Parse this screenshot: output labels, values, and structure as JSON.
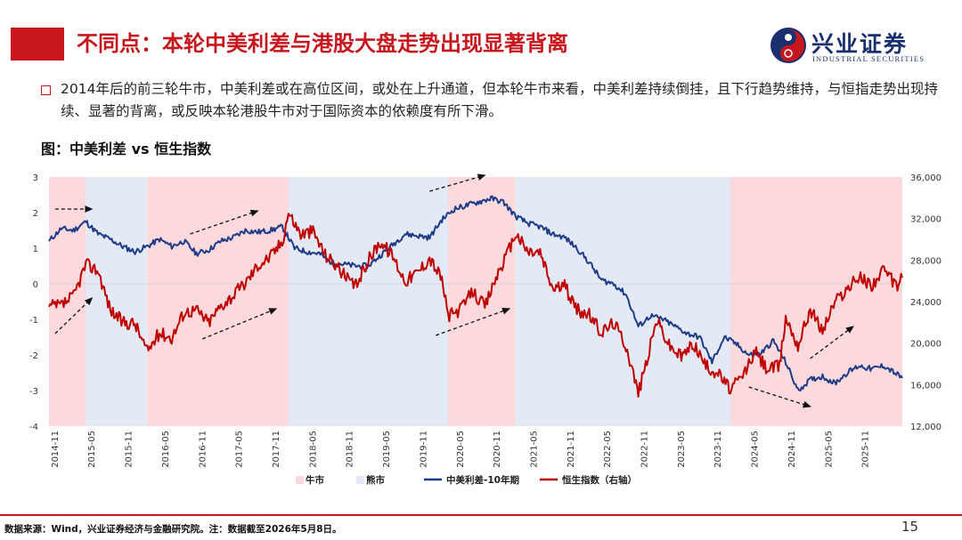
{
  "header": {
    "title": "不同点：本轮中美利差与港股大盘走势出现显著背离",
    "logo_cn": "兴业证券",
    "logo_en": "INDUSTRIAL SECURITIES"
  },
  "bullet": {
    "text": "2014年后的前三轮牛市，中美利差或在高位区间，或处在上升通道，但本轮牛市来看，中美利差持续倒挂，且下行趋势维持，与恒指走势出现持续、显著的背离，或反映本轮港股牛市对于国际资本的依赖度有所下滑。"
  },
  "figure": {
    "title": "图：中美利差 vs 恒生指数"
  },
  "footer": {
    "source": "数据来源：Wind，兴业证券经济与金融研究院。注：数据截至2026年5月8日。",
    "page": "15"
  },
  "colors": {
    "accent": "#c8161d",
    "spread_line": "#1f3c88",
    "hsi_line": "#c00000",
    "bull_shade": "#fbd9dc",
    "bear_shade": "#e4e9f6"
  },
  "chart_data": {
    "type": "line",
    "x_ticks": [
      "2014-11",
      "2015-05",
      "2015-11",
      "2016-05",
      "2016-11",
      "2017-05",
      "2017-11",
      "2018-05",
      "2018-11",
      "2019-05",
      "2019-11",
      "2020-05",
      "2020-11",
      "2021-05",
      "2021-11",
      "2022-05",
      "2022-11",
      "2023-05",
      "2023-11",
      "2024-05",
      "2024-11",
      "2025-05",
      "2025-11"
    ],
    "x_range": [
      "2014-10",
      "2026-05"
    ],
    "y_left": {
      "min": -4,
      "max": 3,
      "ticks": [
        3,
        2,
        1,
        0,
        -1,
        -2,
        -3,
        -4
      ]
    },
    "y_right": {
      "min": 12000,
      "max": 36000,
      "ticks": [
        "36,000",
        "32,000",
        "28,000",
        "24,000",
        "20,000",
        "16,000",
        "12,000"
      ]
    },
    "regimes": [
      {
        "kind": "bull",
        "start": "2014-10",
        "end": "2015-04"
      },
      {
        "kind": "bear",
        "start": "2015-04",
        "end": "2016-02"
      },
      {
        "kind": "bull",
        "start": "2016-02",
        "end": "2018-01"
      },
      {
        "kind": "bear",
        "start": "2018-01",
        "end": "2020-03"
      },
      {
        "kind": "bull",
        "start": "2020-03",
        "end": "2021-02"
      },
      {
        "kind": "bear",
        "start": "2021-02",
        "end": "2024-01"
      },
      {
        "kind": "bull",
        "start": "2024-01",
        "end": "2026-05"
      }
    ],
    "series": [
      {
        "name": "中美利差-10年期",
        "axis": "left",
        "points": [
          [
            "2014-10",
            1.2
          ],
          [
            "2014-12",
            1.55
          ],
          [
            "2015-02",
            1.5
          ],
          [
            "2015-04",
            1.75
          ],
          [
            "2015-06",
            1.4
          ],
          [
            "2015-08",
            1.25
          ],
          [
            "2015-10",
            1.05
          ],
          [
            "2015-12",
            0.9
          ],
          [
            "2016-02",
            1.05
          ],
          [
            "2016-04",
            1.25
          ],
          [
            "2016-06",
            1.05
          ],
          [
            "2016-08",
            1.2
          ],
          [
            "2016-10",
            0.85
          ],
          [
            "2016-12",
            0.95
          ],
          [
            "2017-02",
            1.2
          ],
          [
            "2017-04",
            1.3
          ],
          [
            "2017-06",
            1.5
          ],
          [
            "2017-08",
            1.45
          ],
          [
            "2017-10",
            1.5
          ],
          [
            "2017-12",
            1.6
          ],
          [
            "2018-02",
            1.0
          ],
          [
            "2018-04",
            0.9
          ],
          [
            "2018-06",
            0.85
          ],
          [
            "2018-08",
            0.6
          ],
          [
            "2018-10",
            0.55
          ],
          [
            "2018-12",
            0.5
          ],
          [
            "2019-02",
            0.5
          ],
          [
            "2019-04",
            0.8
          ],
          [
            "2019-06",
            1.1
          ],
          [
            "2019-08",
            1.4
          ],
          [
            "2019-10",
            1.35
          ],
          [
            "2019-12",
            1.3
          ],
          [
            "2020-02",
            1.8
          ],
          [
            "2020-04",
            2.1
          ],
          [
            "2020-06",
            2.2
          ],
          [
            "2020-08",
            2.3
          ],
          [
            "2020-10",
            2.4
          ],
          [
            "2020-12",
            2.3
          ],
          [
            "2021-02",
            1.9
          ],
          [
            "2021-04",
            1.7
          ],
          [
            "2021-06",
            1.6
          ],
          [
            "2021-08",
            1.4
          ],
          [
            "2021-10",
            1.3
          ],
          [
            "2021-12",
            1.0
          ],
          [
            "2022-02",
            0.6
          ],
          [
            "2022-04",
            0.1
          ],
          [
            "2022-06",
            0.0
          ],
          [
            "2022-08",
            -0.3
          ],
          [
            "2022-10",
            -1.2
          ],
          [
            "2022-12",
            -0.9
          ],
          [
            "2023-02",
            -1.0
          ],
          [
            "2023-04",
            -1.2
          ],
          [
            "2023-06",
            -1.4
          ],
          [
            "2023-08",
            -1.5
          ],
          [
            "2023-10",
            -2.2
          ],
          [
            "2023-12",
            -1.5
          ],
          [
            "2024-02",
            -1.7
          ],
          [
            "2024-04",
            -2.0
          ],
          [
            "2024-06",
            -1.95
          ],
          [
            "2024-08",
            -1.6
          ],
          [
            "2024-10",
            -2.2
          ],
          [
            "2024-12",
            -3.0
          ],
          [
            "2025-02",
            -2.7
          ],
          [
            "2025-04",
            -2.6
          ],
          [
            "2025-06",
            -2.8
          ],
          [
            "2025-08",
            -2.5
          ],
          [
            "2025-10",
            -2.3
          ],
          [
            "2025-12",
            -2.4
          ],
          [
            "2026-02",
            -2.3
          ],
          [
            "2026-05",
            -2.65
          ]
        ]
      },
      {
        "name": "恒生指数（右轴）",
        "axis": "right",
        "points": [
          [
            "2014-10",
            23500
          ],
          [
            "2014-12",
            23600
          ],
          [
            "2015-02",
            24500
          ],
          [
            "2015-04",
            27600
          ],
          [
            "2015-06",
            27000
          ],
          [
            "2015-08",
            23200
          ],
          [
            "2015-10",
            22000
          ],
          [
            "2015-12",
            21900
          ],
          [
            "2016-02",
            19200
          ],
          [
            "2016-04",
            21000
          ],
          [
            "2016-06",
            20500
          ],
          [
            "2016-08",
            23000
          ],
          [
            "2016-10",
            23200
          ],
          [
            "2016-12",
            22000
          ],
          [
            "2017-02",
            23600
          ],
          [
            "2017-04",
            24600
          ],
          [
            "2017-06",
            25800
          ],
          [
            "2017-08",
            27500
          ],
          [
            "2017-10",
            28300
          ],
          [
            "2017-12",
            29800
          ],
          [
            "2018-01",
            32600
          ],
          [
            "2018-03",
            30500
          ],
          [
            "2018-05",
            30800
          ],
          [
            "2018-07",
            28500
          ],
          [
            "2018-09",
            27400
          ],
          [
            "2018-11",
            25800
          ],
          [
            "2018-12",
            25500
          ],
          [
            "2019-02",
            28000
          ],
          [
            "2019-04",
            29800
          ],
          [
            "2019-06",
            28400
          ],
          [
            "2019-08",
            26000
          ],
          [
            "2019-10",
            26800
          ],
          [
            "2019-12",
            28200
          ],
          [
            "2020-02",
            26200
          ],
          [
            "2020-03",
            22600
          ],
          [
            "2020-05",
            23200
          ],
          [
            "2020-07",
            25000
          ],
          [
            "2020-09",
            23500
          ],
          [
            "2020-11",
            26600
          ],
          [
            "2021-01",
            29000
          ],
          [
            "2021-02",
            30600
          ],
          [
            "2021-04",
            28800
          ],
          [
            "2021-06",
            28700
          ],
          [
            "2021-08",
            25300
          ],
          [
            "2021-10",
            25500
          ],
          [
            "2021-12",
            23200
          ],
          [
            "2022-02",
            22700
          ],
          [
            "2022-04",
            21000
          ],
          [
            "2022-06",
            22000
          ],
          [
            "2022-08",
            19800
          ],
          [
            "2022-10",
            15200
          ],
          [
            "2022-12",
            19800
          ],
          [
            "2023-01",
            22300
          ],
          [
            "2023-03",
            19800
          ],
          [
            "2023-05",
            18700
          ],
          [
            "2023-07",
            20000
          ],
          [
            "2023-09",
            17800
          ],
          [
            "2023-11",
            17100
          ],
          [
            "2024-01",
            15500
          ],
          [
            "2024-03",
            16800
          ],
          [
            "2024-05",
            19200
          ],
          [
            "2024-07",
            17500
          ],
          [
            "2024-09",
            17800
          ],
          [
            "2024-10",
            22500
          ],
          [
            "2024-12",
            19800
          ],
          [
            "2025-02",
            23300
          ],
          [
            "2025-04",
            21200
          ],
          [
            "2025-06",
            24000
          ],
          [
            "2025-08",
            25200
          ],
          [
            "2025-10",
            26400
          ],
          [
            "2025-12",
            25600
          ],
          [
            "2026-02",
            27000
          ],
          [
            "2026-04",
            25500
          ],
          [
            "2026-05",
            26300
          ]
        ]
      }
    ],
    "legend": [
      {
        "label": "牛市",
        "kind": "bull"
      },
      {
        "label": "熊市",
        "kind": "bear"
      },
      {
        "label": "中美利差-10年期",
        "kind": "spread"
      },
      {
        "label": "恒生指数（右轴）",
        "kind": "hsi"
      }
    ],
    "legend_position": "bottom",
    "arrows": [
      {
        "from": [
          "2014-11",
          2.1
        ],
        "to": [
          "2015-05",
          2.1
        ]
      },
      {
        "from": [
          "2014-11",
          -1.4
        ],
        "to": [
          "2015-05",
          -0.4
        ]
      },
      {
        "from": [
          "2016-09",
          1.4
        ],
        "to": [
          "2017-08",
          2.05
        ]
      },
      {
        "from": [
          "2016-11",
          -1.55
        ],
        "to": [
          "2017-11",
          -0.7
        ]
      },
      {
        "from": [
          "2019-12",
          2.6
        ],
        "to": [
          "2020-09",
          3.05
        ]
      },
      {
        "from": [
          "2020-01",
          -1.45
        ],
        "to": [
          "2021-01",
          -0.7
        ]
      },
      {
        "from": [
          "2024-04",
          -2.9
        ],
        "to": [
          "2025-02",
          -3.45
        ]
      },
      {
        "from": [
          "2025-02",
          -2.1
        ],
        "to": [
          "2025-09",
          -1.2
        ]
      }
    ]
  }
}
